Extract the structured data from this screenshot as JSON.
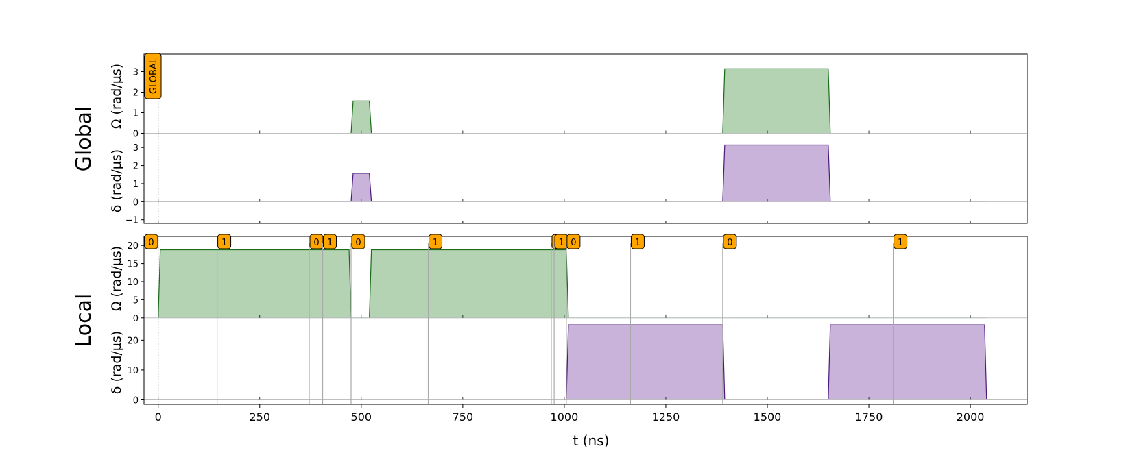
{
  "chart_data": {
    "type": "area",
    "xlabel": "t (ns)",
    "xlim": [
      -35,
      2140
    ],
    "x_ticks": [
      0,
      250,
      500,
      750,
      1000,
      1250,
      1500,
      1750,
      2000
    ],
    "colors": {
      "omega": "#b3d3b3",
      "omega_line": "#1a6b1a",
      "delta": "#c9b3db",
      "delta_line": "#4b1a7a",
      "marker": "#ffa500"
    },
    "groups": [
      {
        "label": "Global",
        "panels": [
          {
            "ylabel": "Ω (rad/µs)",
            "ylim": [
              -0.25,
              3.85
            ],
            "yticks": [
              0,
              1,
              2,
              3
            ],
            "kind": "omega",
            "pulses": [
              {
                "x": [
                  475,
                  480,
                  520,
                  525
                ],
                "y": [
                  0,
                  1.57,
                  1.57,
                  0
                ]
              },
              {
                "x": [
                  1390,
                  1395,
                  1650,
                  1655
                ],
                "y": [
                  0,
                  3.14,
                  3.14,
                  0
                ]
              }
            ],
            "baseline_end": 2040
          },
          {
            "ylabel": "δ (rad/µs)",
            "ylim": [
              -1.2,
              3.5
            ],
            "yticks": [
              -1,
              0,
              1,
              2,
              3
            ],
            "kind": "delta",
            "pulses": [
              {
                "x": [
                  475,
                  480,
                  520,
                  525
                ],
                "y": [
                  0,
                  1.57,
                  1.57,
                  0
                ]
              },
              {
                "x": [
                  1390,
                  1395,
                  1650,
                  1655
                ],
                "y": [
                  0,
                  3.14,
                  3.14,
                  0
                ]
              }
            ],
            "baseline_end": 2040
          }
        ],
        "markers": [
          {
            "label": "GLOBAL",
            "t": 0,
            "vertical": true
          }
        ]
      },
      {
        "label": "Local",
        "panels": [
          {
            "ylabel": "Ω (rad/µs)",
            "ylim": [
              -0.8,
              22.5
            ],
            "yticks": [
              0,
              5,
              10,
              15,
              20
            ],
            "kind": "omega",
            "pulses": [
              {
                "x": [
                  0,
                  5,
                  470,
                  475
                ],
                "y": [
                  0,
                  18.8,
                  18.8,
                  0
                ]
              },
              {
                "x": [
                  520,
                  525,
                  1005,
                  1010
                ],
                "y": [
                  0,
                  18.8,
                  18.8,
                  0
                ]
              }
            ],
            "baseline_end": 2040
          },
          {
            "ylabel": "δ (rad/µs)",
            "ylim": [
              -1.5,
              26.5
            ],
            "yticks": [
              0,
              10,
              20
            ],
            "kind": "delta",
            "pulses": [
              {
                "x": [
                  1005,
                  1010,
                  1390,
                  1395
                ],
                "y": [
                  0,
                  25.1,
                  25.1,
                  0
                ]
              },
              {
                "x": [
                  1650,
                  1655,
                  2035,
                  2040
                ],
                "y": [
                  0,
                  25.1,
                  25.1,
                  0
                ]
              }
            ],
            "baseline_end": 2040
          }
        ],
        "markers": [
          {
            "label": "0",
            "t": 0
          },
          {
            "label": "1",
            "t": 145
          },
          {
            "label": "0",
            "t": 372
          },
          {
            "label": "1",
            "t": 405
          },
          {
            "label": "0",
            "t": 475
          },
          {
            "label": "1",
            "t": 665
          },
          {
            "label": "1",
            "t": 968
          },
          {
            "label": "1",
            "t": 975
          },
          {
            "label": "0",
            "t": 1005
          },
          {
            "label": "1",
            "t": 1163
          },
          {
            "label": "0",
            "t": 1390
          },
          {
            "label": "1",
            "t": 1810
          }
        ]
      }
    ]
  }
}
